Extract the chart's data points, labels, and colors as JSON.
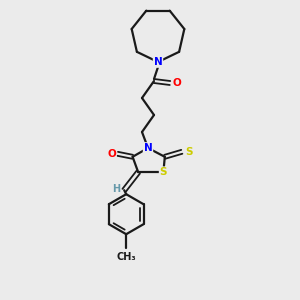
{
  "bg_color": "#ebebeb",
  "bond_color": "#1a1a1a",
  "atom_colors": {
    "N": "#0000ff",
    "O": "#ff0000",
    "S": "#cccc00",
    "C": "#1a1a1a",
    "H": "#6699aa"
  }
}
